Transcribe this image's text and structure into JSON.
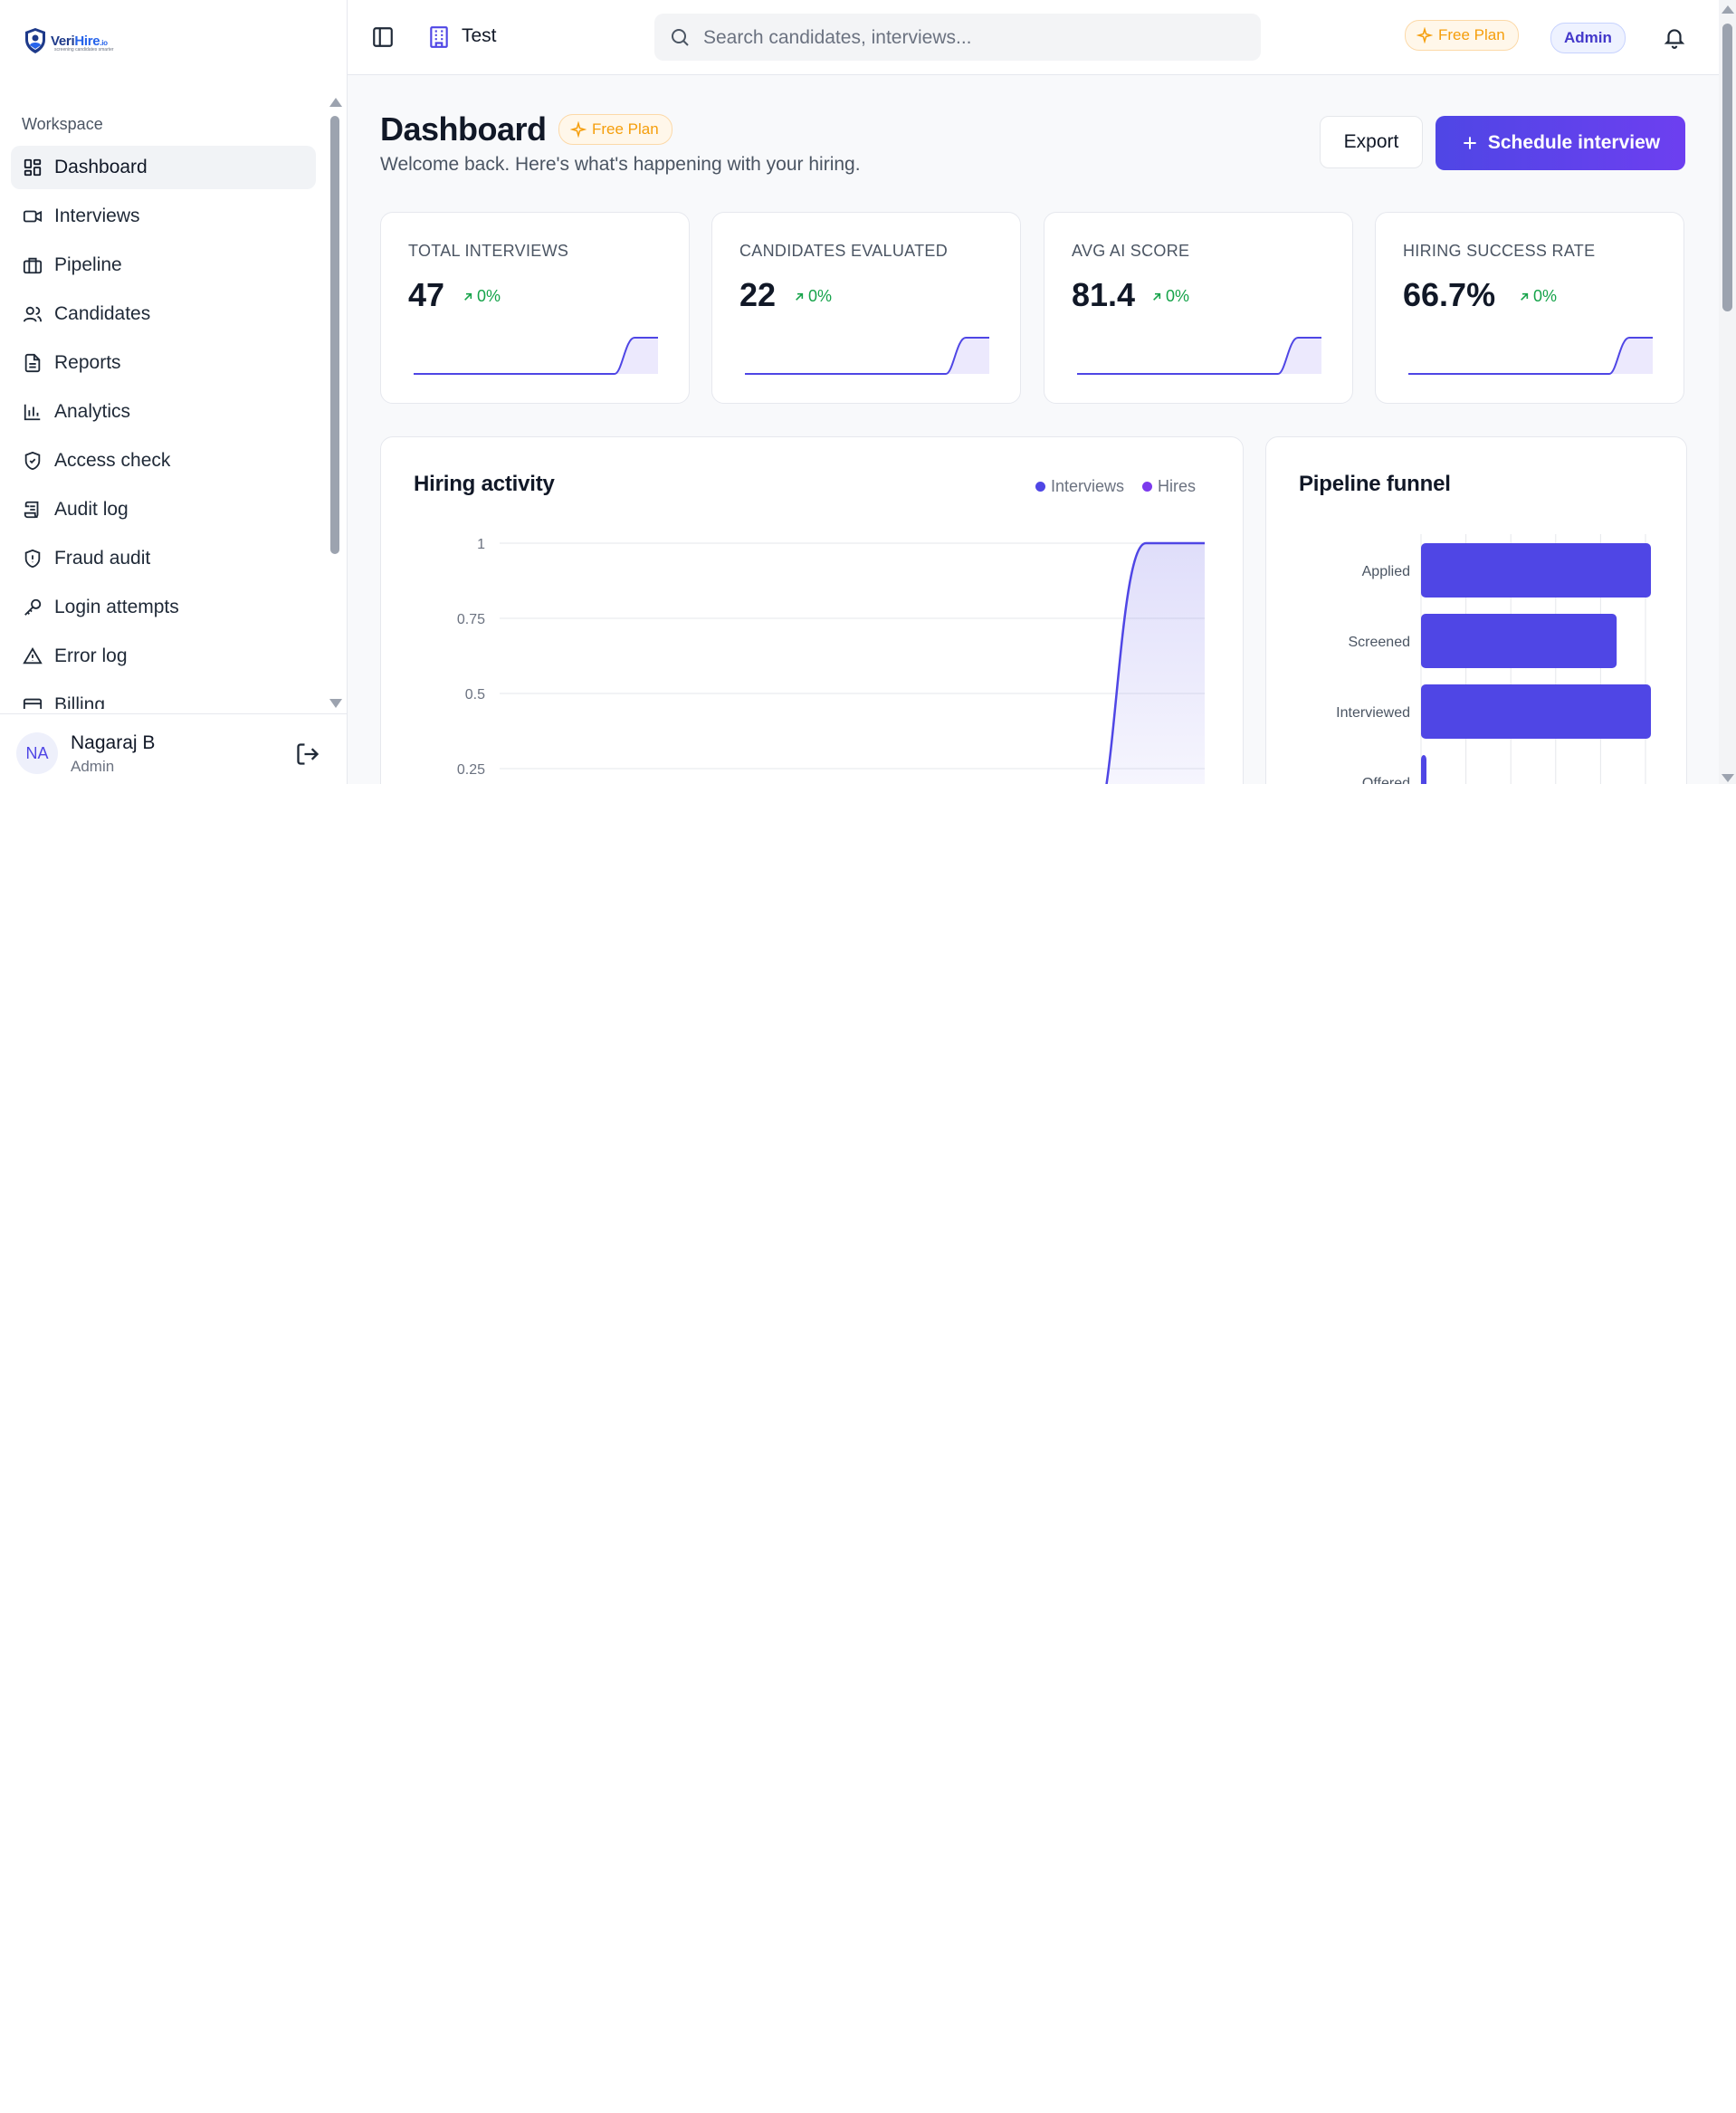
{
  "brand": {
    "logo_text_1": "Veri",
    "logo_text_2": "Hire",
    "logo_suffix": ".io",
    "logo_tagline": "screening candidates smarter"
  },
  "sidebar": {
    "section_label": "Workspace",
    "items": [
      {
        "label": "Dashboard",
        "icon": "dashboard-icon",
        "active": true
      },
      {
        "label": "Interviews",
        "icon": "video-icon"
      },
      {
        "label": "Pipeline",
        "icon": "briefcase-icon"
      },
      {
        "label": "Candidates",
        "icon": "users-icon"
      },
      {
        "label": "Reports",
        "icon": "file-text-icon"
      },
      {
        "label": "Analytics",
        "icon": "bar-chart-icon"
      },
      {
        "label": "Access check",
        "icon": "shield-check-icon"
      },
      {
        "label": "Audit log",
        "icon": "scroll-icon"
      },
      {
        "label": "Fraud audit",
        "icon": "shield-alert-icon"
      },
      {
        "label": "Login attempts",
        "icon": "key-icon"
      },
      {
        "label": "Error log",
        "icon": "alert-triangle-icon"
      },
      {
        "label": "Billing",
        "icon": "credit-card-icon"
      }
    ],
    "user": {
      "initials": "NA",
      "name": "Nagaraj B",
      "role": "Admin"
    }
  },
  "topbar": {
    "org_name": "Test",
    "search_placeholder": "Search candidates, interviews...",
    "plan_badge": "Free Plan",
    "role_badge": "Admin"
  },
  "page": {
    "title": "Dashboard",
    "plan_badge": "Free Plan",
    "subtitle": "Welcome back. Here's what's happening with your hiring.",
    "export_label": "Export",
    "schedule_label": "Schedule interview"
  },
  "kpis": [
    {
      "label": "TOTAL INTERVIEWS",
      "value": "47",
      "delta": "0%"
    },
    {
      "label": "CANDIDATES EVALUATED",
      "value": "22",
      "delta": "0%"
    },
    {
      "label": "AVG AI SCORE",
      "value": "81.4",
      "delta": "0%"
    },
    {
      "label": "HIRING SUCCESS RATE",
      "value": "66.7%",
      "delta": "0%"
    }
  ],
  "colors": {
    "primary": "#4f46e5",
    "hires": "#7c3aed",
    "success": "#16a34a",
    "plan": "#f59e0b"
  },
  "chart_data": [
    {
      "type": "area",
      "title": "Hiring activity",
      "xlabel": "",
      "ylabel": "",
      "ylim": [
        0,
        1
      ],
      "yticks_visible": [
        "1",
        "0.75",
        "0.5",
        "0.25"
      ],
      "legend": "top-right",
      "grid": true,
      "series": [
        {
          "name": "Interviews",
          "color": "#4f46e5",
          "values": [
            0,
            0,
            0,
            0,
            0,
            0,
            0,
            0,
            0,
            0,
            0,
            1,
            1
          ]
        },
        {
          "name": "Hires",
          "color": "#7c3aed",
          "values": []
        }
      ]
    },
    {
      "type": "bar",
      "orientation": "horizontal",
      "title": "Pipeline funnel",
      "categories": [
        "Applied",
        "Screened",
        "Interviewed",
        "Offered"
      ],
      "values": [
        47,
        40,
        47,
        1
      ],
      "grid": true
    }
  ]
}
